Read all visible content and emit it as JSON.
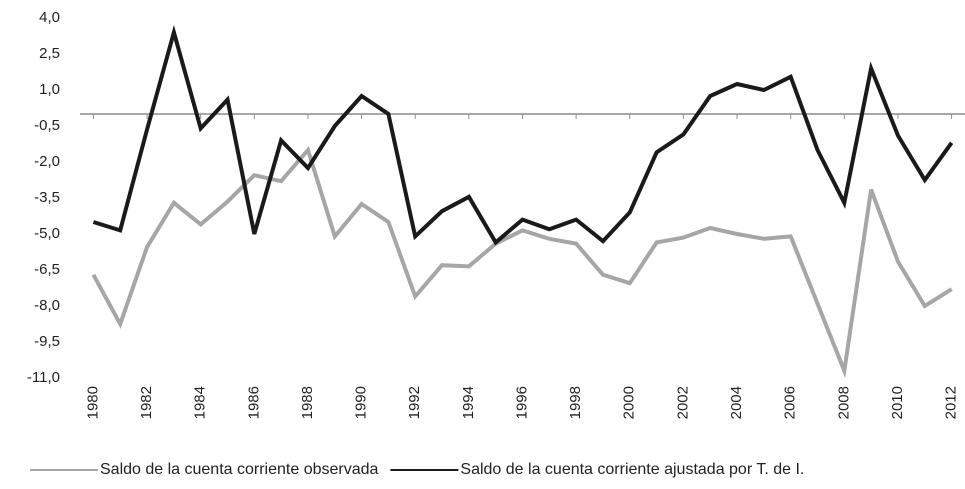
{
  "chart_data": {
    "type": "line",
    "x": [
      1980,
      1981,
      1982,
      1983,
      1984,
      1985,
      1986,
      1987,
      1988,
      1989,
      1990,
      1991,
      1992,
      1993,
      1994,
      1995,
      1996,
      1997,
      1998,
      1999,
      2000,
      2001,
      2002,
      2003,
      2004,
      2005,
      2006,
      2007,
      2008,
      2009,
      2010,
      2011,
      2012
    ],
    "xlim": [
      1979.5,
      2012.5
    ],
    "xticks": [
      1980,
      1982,
      1984,
      1986,
      1988,
      1990,
      1992,
      1994,
      1996,
      1998,
      2000,
      2002,
      2004,
      2006,
      2008,
      2010,
      2012
    ],
    "ylim": [
      -11,
      4
    ],
    "yticks": [
      {
        "value": 4,
        "label": "4,0"
      },
      {
        "value": 2.5,
        "label": "2,5"
      },
      {
        "value": 1,
        "label": "1,0"
      },
      {
        "value": -0.5,
        "label": "-0,5"
      },
      {
        "value": -2,
        "label": "-2,0"
      },
      {
        "value": -3.5,
        "label": "-3,5"
      },
      {
        "value": -5,
        "label": "-5,0"
      },
      {
        "value": -6.5,
        "label": "-6,5"
      },
      {
        "value": -8,
        "label": "-8,0"
      },
      {
        "value": -9.5,
        "label": "-9,5"
      },
      {
        "value": -11,
        "label": "-11,0"
      }
    ],
    "series": [
      {
        "name": "Saldo de la cuenta corriente observada",
        "color": "#a6a6a6",
        "values": [
          -6.7,
          -8.75,
          -5.55,
          -3.7,
          -4.6,
          -3.65,
          -2.55,
          -2.8,
          -1.5,
          -5.1,
          -3.75,
          -4.5,
          -7.6,
          -6.3,
          -6.35,
          -5.4,
          -4.85,
          -5.2,
          -5.4,
          -6.7,
          -7.05,
          -5.35,
          -5.15,
          -4.75,
          -5.0,
          -5.2,
          -5.1,
          -7.9,
          -10.7,
          -3.15,
          -6.15,
          -8.0,
          -7.3
        ]
      },
      {
        "name": "Saldo de la cuenta corriente ajustada por T. de I.",
        "color": "#1a1a1a",
        "values": [
          -4.5,
          -4.85,
          -0.65,
          3.4,
          -0.6,
          0.6,
          -5.0,
          -1.1,
          -2.25,
          -0.5,
          0.75,
          0.0,
          -5.1,
          -4.05,
          -3.45,
          -5.35,
          -4.4,
          -4.8,
          -4.4,
          -5.3,
          -4.1,
          -1.6,
          -0.85,
          0.75,
          1.25,
          1.0,
          1.55,
          -1.5,
          -3.7,
          1.9,
          -0.9,
          -2.75,
          -1.2
        ]
      }
    ]
  }
}
